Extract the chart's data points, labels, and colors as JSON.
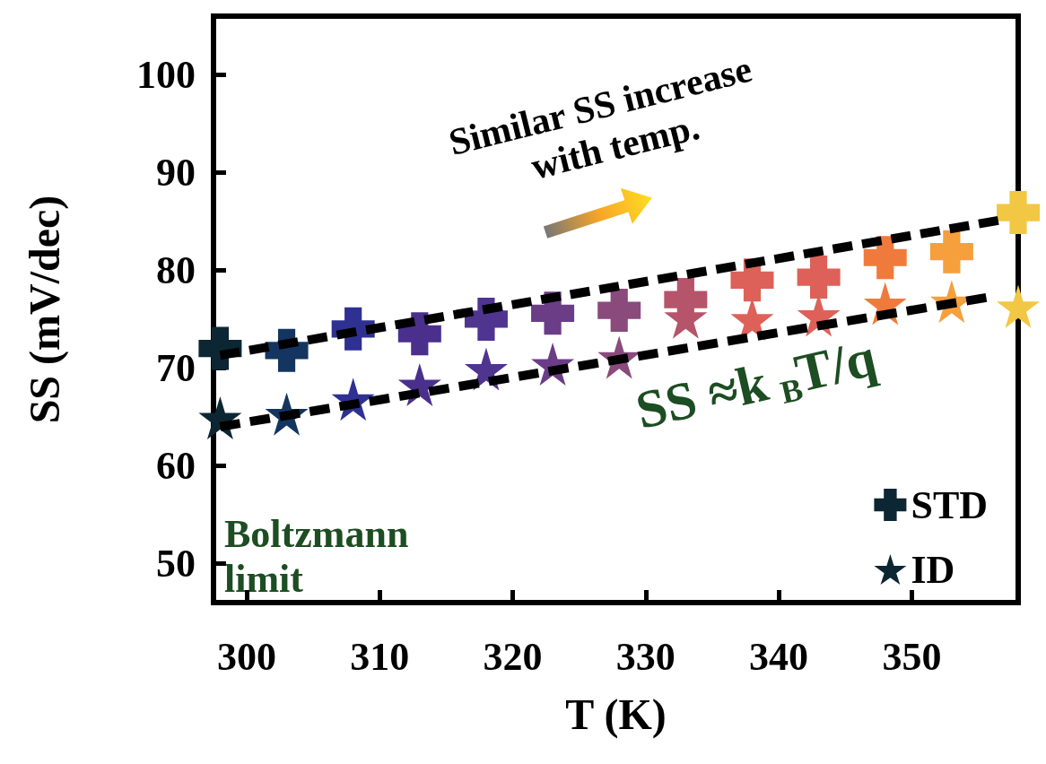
{
  "chart_data": {
    "type": "scatter",
    "xlabel": "T (K)",
    "ylabel": "SS (mV/dec)",
    "xlim": [
      297.5,
      358
    ],
    "xticks": [
      300,
      310,
      320,
      330,
      340,
      350
    ],
    "ylim": [
      46,
      106
    ],
    "yticks": [
      50,
      60,
      70,
      80,
      90,
      100
    ],
    "grid": false,
    "legend": "bottom right",
    "series": [
      {
        "name": "STD",
        "color": "#0d2633",
        "marker": "cross",
        "x": [
          298,
          303,
          308,
          313,
          318,
          323,
          328,
          333,
          338,
          343,
          348,
          353,
          358
        ],
        "values": [
          72.0,
          71.8,
          74.0,
          73.5,
          75.0,
          75.6,
          75.9,
          77.0,
          79.0,
          79.3,
          81.3,
          81.9,
          85.9
        ],
        "colors": [
          "#0d2633",
          "#143560",
          "#2e3192",
          "#4b2f8c",
          "#4f3590",
          "#6b3d87",
          "#8a4a7c",
          "#b5546a",
          "#dd6158",
          "#dd6158",
          "#f07a3c",
          "#f5a03c",
          "#f2c744"
        ]
      },
      {
        "name": "ID",
        "color": "#0d2633",
        "marker": "star",
        "x": [
          298,
          303,
          308,
          313,
          318,
          323,
          328,
          333,
          338,
          343,
          348,
          353,
          358
        ],
        "values": [
          64.9,
          65.3,
          66.8,
          68.3,
          69.9,
          70.4,
          71.1,
          75.2,
          75.0,
          75.4,
          76.6,
          76.8,
          76.3
        ],
        "colors": [
          "#0d2633",
          "#143560",
          "#2e3192",
          "#4b2f8c",
          "#4f3590",
          "#6b3d87",
          "#8a4a7c",
          "#b5546a",
          "#dd6158",
          "#dd6158",
          "#f07a3c",
          "#f5a03c",
          "#f2c744"
        ]
      },
      {
        "type": "line",
        "color": "#000000",
        "line_style": "dashed",
        "marker": "none",
        "x": [
          298,
          356.5
        ],
        "values": [
          71.3,
          85.1
        ]
      },
      {
        "type": "line",
        "color": "#000000",
        "line_style": "dashed",
        "marker": "none",
        "x": [
          298,
          355.6
        ],
        "values": [
          64.0,
          77.2
        ]
      }
    ],
    "annotations": [
      "Similar SS increase with temp.",
      "SS ≈k$_{B}$T/q",
      "Boltzmann limit"
    ]
  }
}
